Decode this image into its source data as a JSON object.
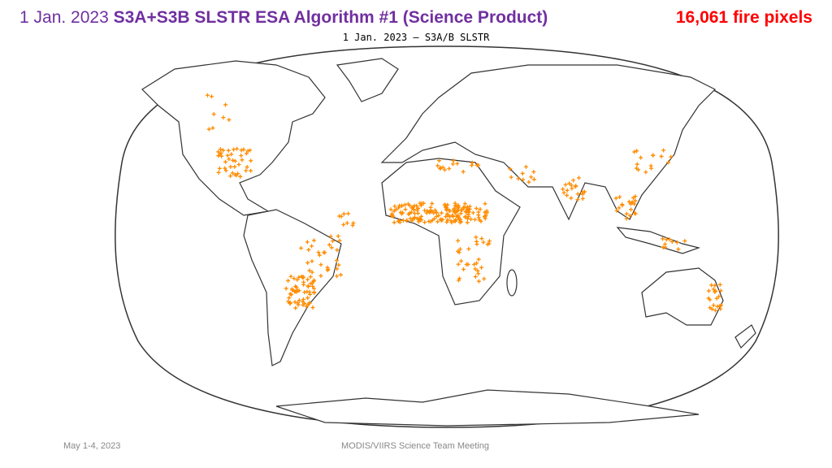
{
  "header": {
    "date": "1 Jan. 2023",
    "title": "S3A+S3B SLSTR ESA Algorithm #1 (Science Product)",
    "count": "16,061 fire pixels"
  },
  "map": {
    "title": "1 Jan. 2023 – S3A/B SLSTR"
  },
  "footer": {
    "date": "May 1-4, 2023",
    "event": "MODIS/VIIRS Science Team Meeting"
  }
}
